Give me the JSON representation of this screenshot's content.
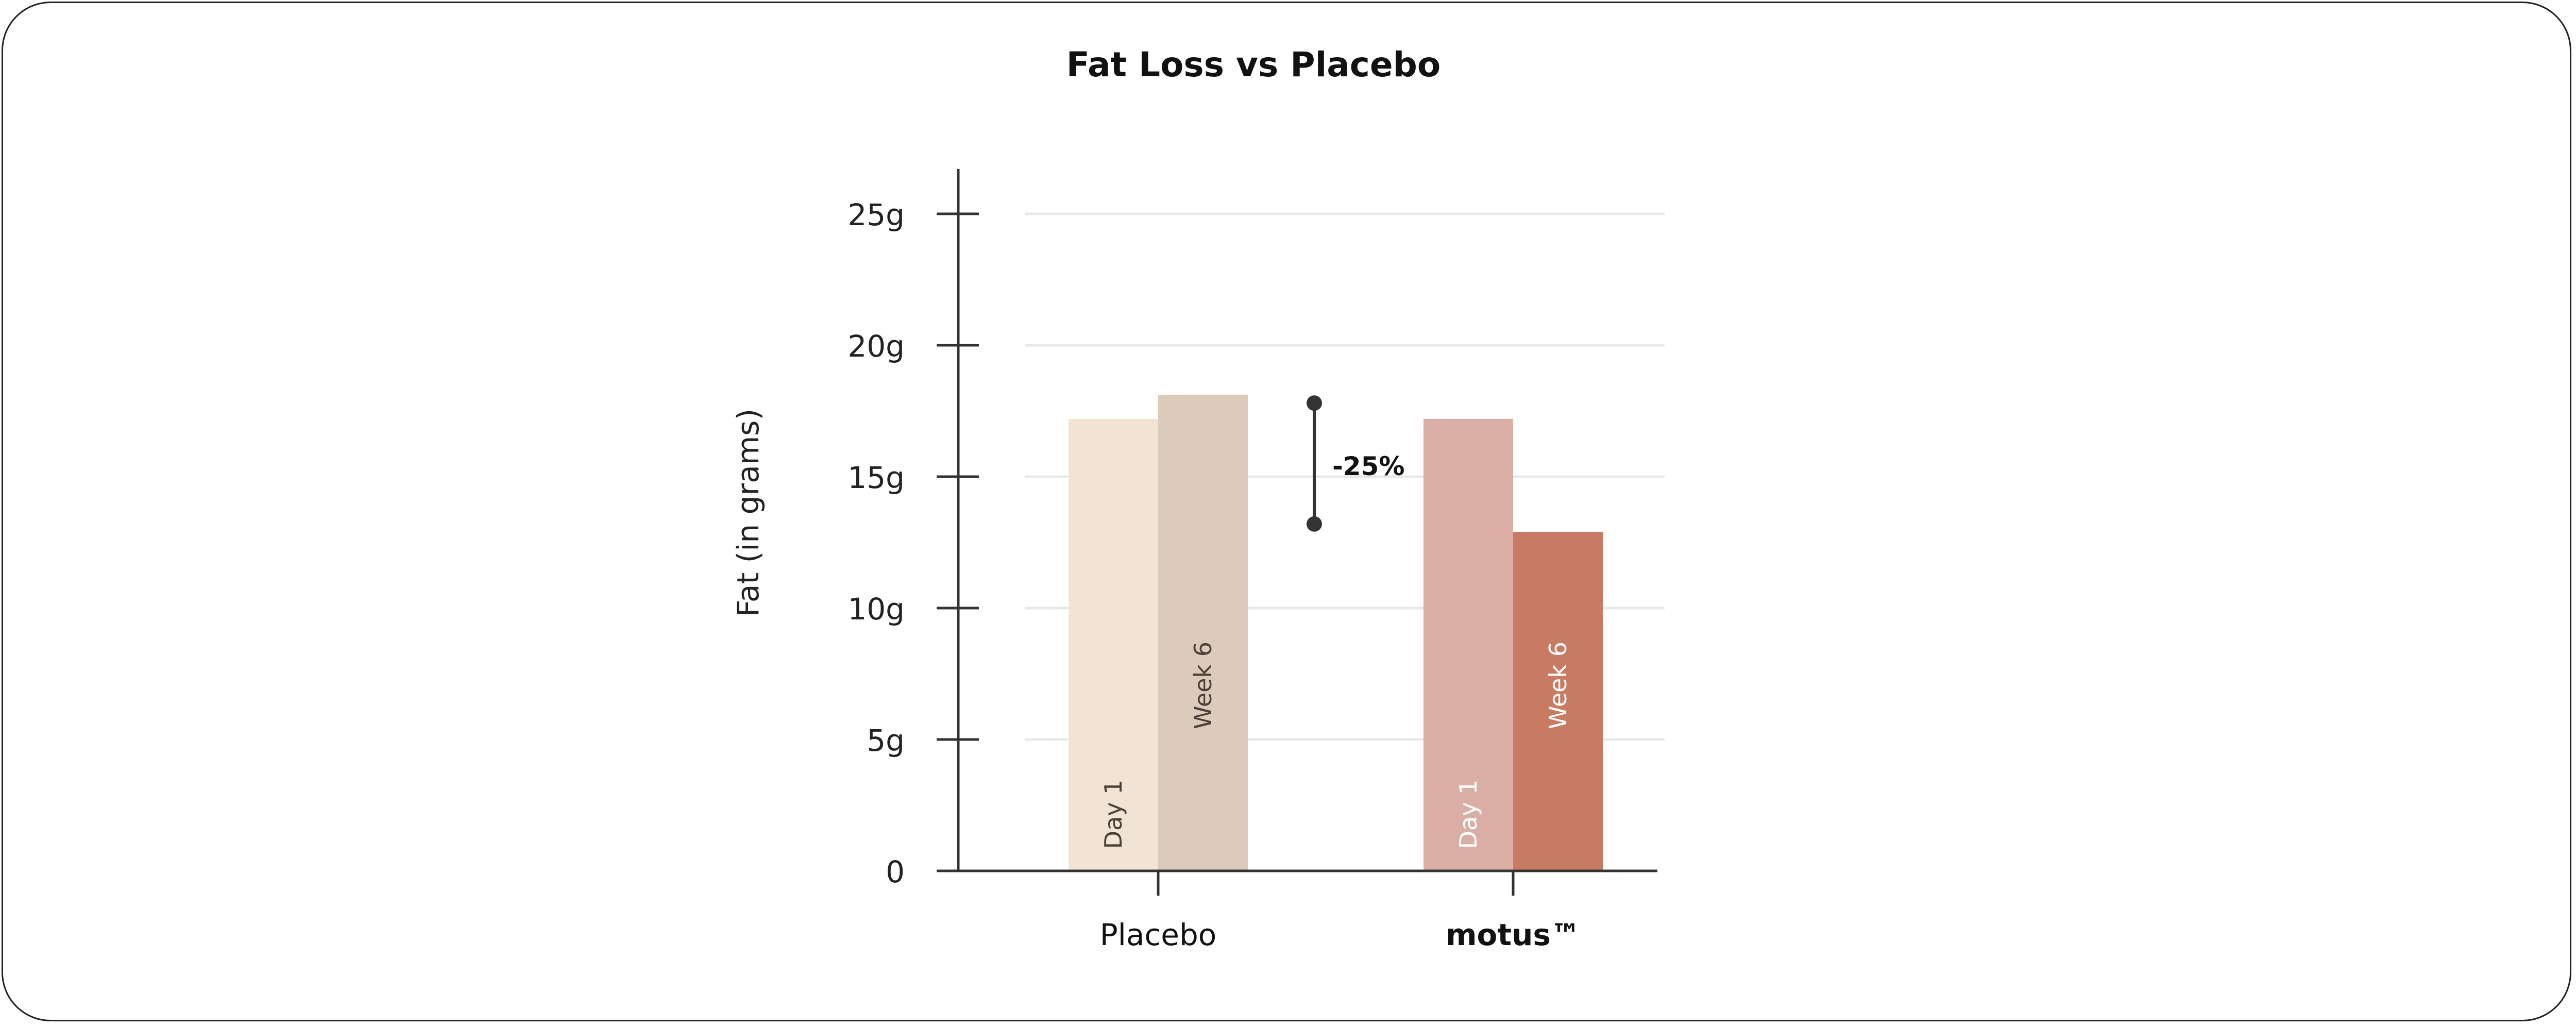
{
  "chart_data": {
    "type": "bar",
    "title": "Fat Loss vs Placebo",
    "ylabel": "Fat (in grams)",
    "xlabel": "",
    "ylim": [
      0,
      25
    ],
    "yticks": [
      {
        "value": 0,
        "label": "0"
      },
      {
        "value": 5,
        "label": "5g"
      },
      {
        "value": 10,
        "label": "10g"
      },
      {
        "value": 15,
        "label": "15g"
      },
      {
        "value": 20,
        "label": "20g"
      },
      {
        "value": 25,
        "label": "25g"
      }
    ],
    "grid": true,
    "categories": [
      "Placebo",
      "motus™"
    ],
    "series": [
      {
        "name": "Day 1",
        "values": [
          17.2,
          17.2
        ],
        "colors": [
          "#f1e4d5",
          "#dbaea5"
        ],
        "label_colors": [
          "#4a4038",
          "#ffffff"
        ]
      },
      {
        "name": "Week 6",
        "values": [
          18.1,
          12.9
        ],
        "colors": [
          "#dccbbb",
          "#c87b62"
        ],
        "label_colors": [
          "#4a4038",
          "#ffffff"
        ]
      }
    ],
    "annotation": {
      "label": "-25%",
      "from": 17.8,
      "to": 13.2
    }
  }
}
